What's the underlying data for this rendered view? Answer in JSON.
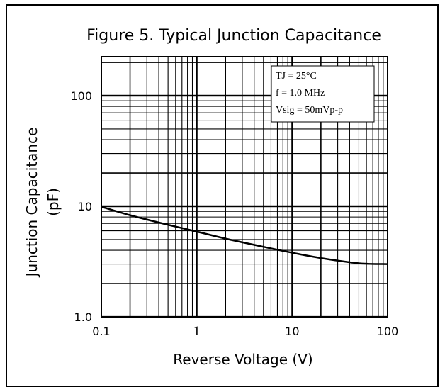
{
  "chart_data": {
    "type": "line",
    "title": "Figure 5. Typical Junction Capacitance",
    "xlabel": "Reverse Voltage (V)",
    "ylabel_line1": "Junction Capacitance",
    "ylabel_line2": "(pF)",
    "x_scale": "log",
    "y_scale": "log",
    "xlim": [
      0.1,
      100
    ],
    "ylim": [
      1,
      200
    ],
    "grid": true,
    "x_ticks": [
      {
        "value": 0.1,
        "label": "0.1"
      },
      {
        "value": 1,
        "label": "1"
      },
      {
        "value": 10,
        "label": "10"
      },
      {
        "value": 100,
        "label": "100"
      }
    ],
    "y_ticks": [
      {
        "value": 1,
        "label": "1.0"
      },
      {
        "value": 10,
        "label": "10"
      },
      {
        "value": 100,
        "label": "100"
      }
    ],
    "annotations": [
      "TJ = 25°C",
      "f = 1.0 MHz",
      "Vsig = 50mVp-p"
    ],
    "series": [
      {
        "x": [
          0.1,
          0.2,
          0.5,
          1,
          2,
          5,
          10,
          20,
          50,
          100
        ],
        "y": [
          9.9,
          8.3,
          6.8,
          5.9,
          5.1,
          4.3,
          3.8,
          3.4,
          3.05,
          3.0
        ]
      }
    ]
  }
}
